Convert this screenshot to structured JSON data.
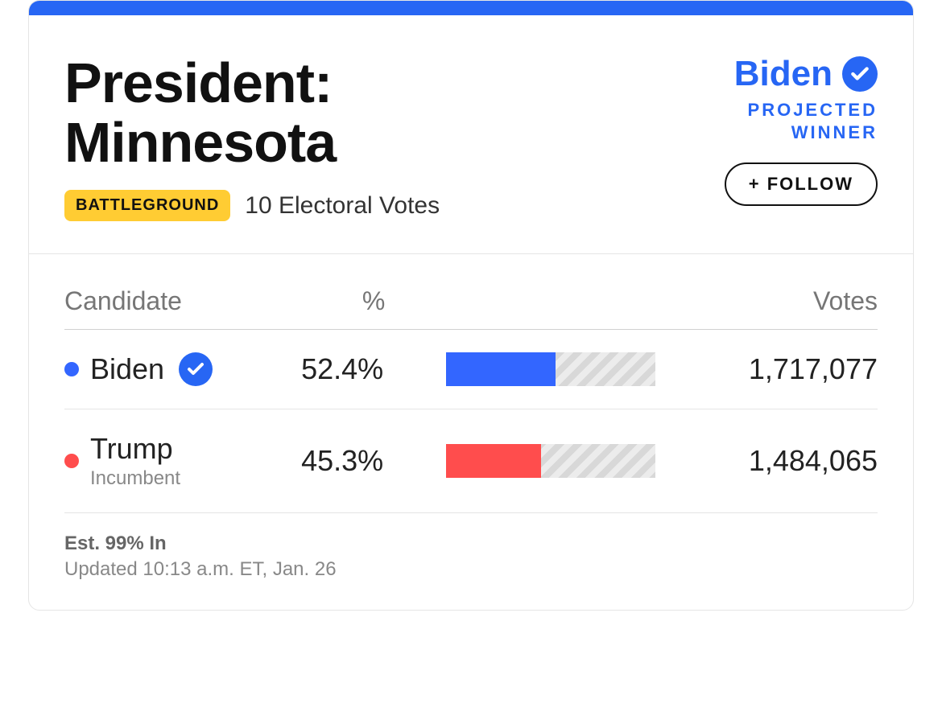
{
  "colors": {
    "accent_blue": "#2766f4",
    "badge_bg": "#ffcc33",
    "dem_bar": "#3366ff",
    "rep_bar": "#ff4d4d",
    "dem_dot": "#3366ff",
    "rep_dot": "#ff4d4d",
    "text_muted": "#767676"
  },
  "header": {
    "title_line1": "President:",
    "title_line2": "Minnesota",
    "badge_label": "BATTLEGROUND",
    "electoral_text": "10 Electoral Votes"
  },
  "winner": {
    "name": "Biden",
    "projected_line1": "PROJECTED",
    "projected_line2": "WINNER",
    "follow_label": "+ FOLLOW"
  },
  "table": {
    "col_candidate": "Candidate",
    "col_pct": "%",
    "col_votes": "Votes"
  },
  "candidates": [
    {
      "name": "Biden",
      "dot_color_key": "dem_dot",
      "bar_color_key": "dem_bar",
      "pct_label": "52.4%",
      "pct_value": 52.4,
      "votes": "1,717,077",
      "is_winner": true,
      "incumbent": false
    },
    {
      "name": "Trump",
      "dot_color_key": "rep_dot",
      "bar_color_key": "rep_bar",
      "pct_label": "45.3%",
      "pct_value": 45.3,
      "votes": "1,484,065",
      "is_winner": false,
      "incumbent": true,
      "incumbent_label": "Incumbent"
    }
  ],
  "footer": {
    "est_in": "Est. 99% In",
    "updated": "Updated 10:13 a.m. ET, Jan. 26"
  }
}
